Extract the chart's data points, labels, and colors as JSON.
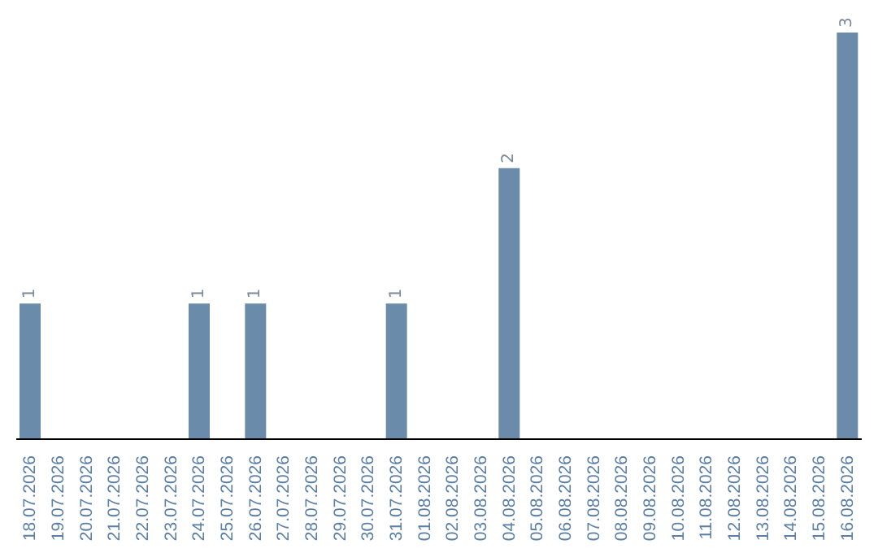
{
  "chart_data": {
    "type": "bar",
    "categories": [
      "18.07.2026",
      "19.07.2026",
      "20.07.2026",
      "21.07.2026",
      "22.07.2026",
      "23.07.2026",
      "24.07.2026",
      "25.07.2026",
      "26.07.2026",
      "27.07.2026",
      "28.07.2026",
      "29.07.2026",
      "30.07.2026",
      "31.07.2026",
      "01.08.2026",
      "02.08.2026",
      "03.08.2026",
      "04.08.2026",
      "05.08.2026",
      "06.08.2026",
      "07.08.2026",
      "08.08.2026",
      "09.08.2026",
      "10.08.2026",
      "11.08.2026",
      "12.08.2026",
      "13.08.2026",
      "14.08.2026",
      "15.08.2026",
      "16.08.2026"
    ],
    "values": [
      1,
      0,
      0,
      0,
      0,
      0,
      1,
      0,
      1,
      0,
      0,
      0,
      0,
      1,
      0,
      0,
      0,
      2,
      0,
      0,
      0,
      0,
      0,
      0,
      0,
      0,
      0,
      0,
      0,
      3
    ],
    "value_labels": [
      "1",
      null,
      null,
      null,
      null,
      null,
      "1",
      null,
      "1",
      null,
      null,
      null,
      null,
      "1",
      null,
      null,
      null,
      "2",
      null,
      null,
      null,
      null,
      null,
      null,
      null,
      null,
      null,
      null,
      null,
      "3"
    ],
    "color": "#6a8caa",
    "tick_labels": "x",
    "grid": false
  }
}
